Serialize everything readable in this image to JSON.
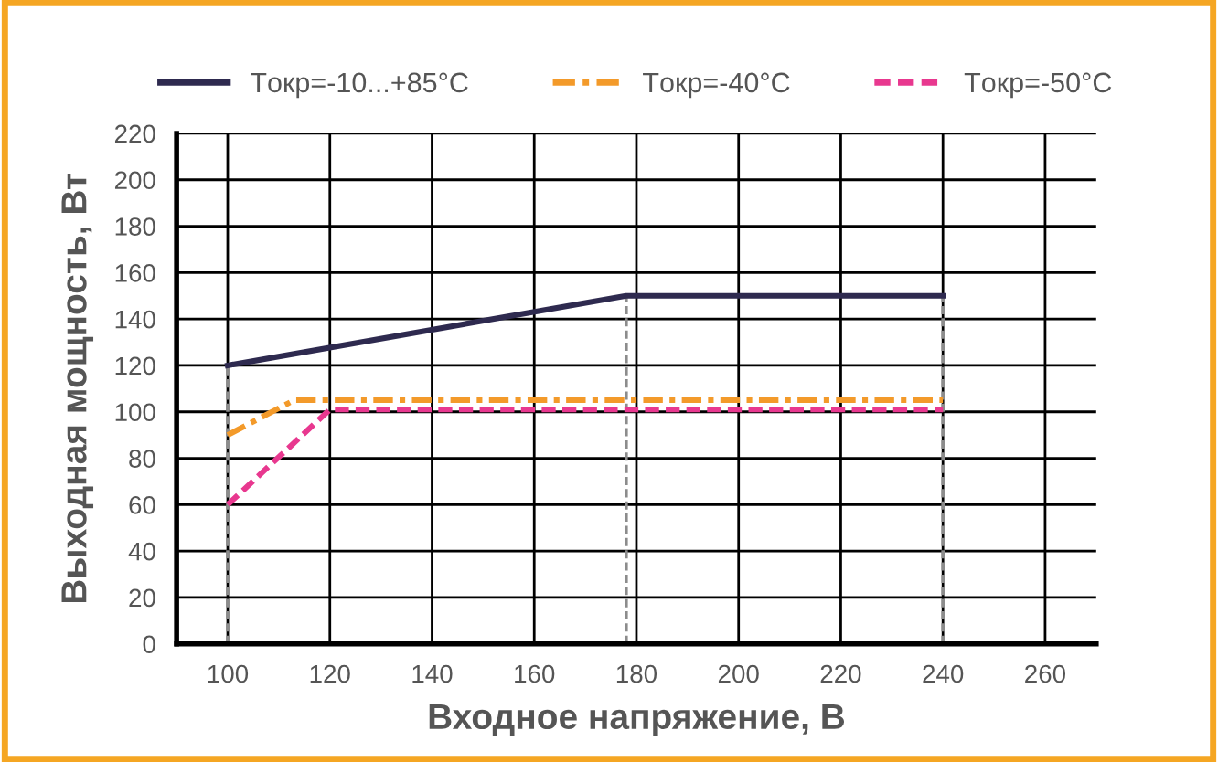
{
  "chart_data": {
    "type": "line",
    "xlabel": "Входное напряжение, В",
    "ylabel": "Выходная мощность, Вт",
    "series": [
      {
        "name": "Tокр=-10...+85°C",
        "color": "#2e2a4f",
        "line_style": "solid",
        "x": [
          100,
          178,
          240
        ],
        "values": [
          120,
          150,
          150
        ]
      },
      {
        "name": "Tокр=-40°C",
        "color": "#f39a2a",
        "line_style": "dashdot",
        "x": [
          100,
          113,
          240
        ],
        "values": [
          90,
          105,
          105
        ]
      },
      {
        "name": "Tокр=-50°C",
        "color": "#e8388f",
        "line_style": "dashed",
        "x": [
          100,
          120,
          240
        ],
        "values": [
          60,
          101,
          101
        ]
      }
    ],
    "xlim": [
      90,
      270
    ],
    "xticks": [
      100,
      120,
      140,
      160,
      180,
      200,
      220,
      240,
      260
    ],
    "ylim": [
      0,
      220
    ],
    "yticks": [
      0,
      20,
      40,
      60,
      80,
      100,
      120,
      140,
      160,
      180,
      200,
      220
    ],
    "ref_lines": [
      {
        "axis": "x",
        "value": 100,
        "color": "#8c8c8c",
        "line_style": "dashed"
      },
      {
        "axis": "x",
        "value": 178,
        "color": "#8c8c8c",
        "line_style": "dashed"
      },
      {
        "axis": "x",
        "value": 240,
        "color": "#8c8c8c",
        "line_style": "dashed"
      }
    ],
    "grid": true,
    "legend": "top",
    "marker": "none"
  }
}
